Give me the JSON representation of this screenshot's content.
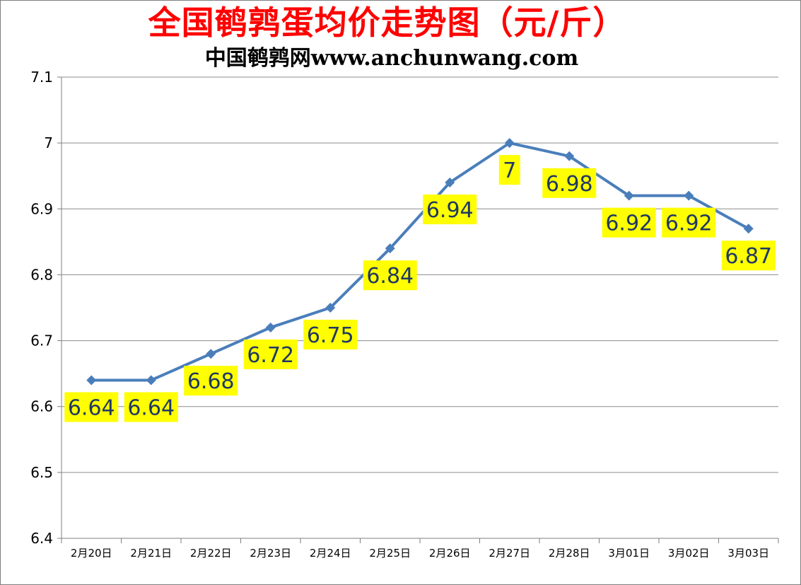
{
  "chart_data": {
    "type": "line",
    "title": "全国鹌鹑蛋均价走势图（元/斤）",
    "subtitle": "中国鹌鹑网www.anchunwang.com",
    "xlabel": "",
    "ylabel": "",
    "categories": [
      "2月20日",
      "2月21日",
      "2月22日",
      "2月23日",
      "2月24日",
      "2月25日",
      "2月26日",
      "2月27日",
      "2月28日",
      "3月01日",
      "3月02日",
      "3月03日"
    ],
    "series": [
      {
        "name": "鹌鹑蛋均价",
        "values": [
          6.64,
          6.64,
          6.68,
          6.72,
          6.75,
          6.84,
          6.94,
          7,
          6.98,
          6.92,
          6.92,
          6.87
        ],
        "labels": [
          "6.64",
          "6.64",
          "6.68",
          "6.72",
          "6.75",
          "6.84",
          "6.94",
          "7",
          "6.98",
          "6.92",
          "6.92",
          "6.87"
        ]
      }
    ],
    "y_ticks": [
      "6.4",
      "6.5",
      "6.6",
      "6.7",
      "6.8",
      "6.9",
      "7",
      "7.1"
    ],
    "ylim": [
      6.4,
      7.1
    ],
    "grid": true,
    "legend": "none",
    "colors": {
      "line": "#4a7ebb",
      "label_bg": "#ffff00",
      "label_text": "#1f3864",
      "grid": "#8c8c8c",
      "title": "#ff0000"
    }
  }
}
